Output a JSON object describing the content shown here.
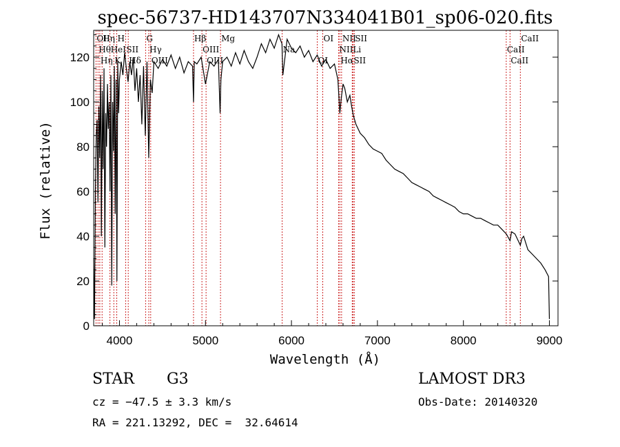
{
  "chart_data": {
    "type": "line",
    "title": "spec-56737-HD143707N334041B01_sp06-020.fits",
    "xlabel": "Wavelength (Å)",
    "ylabel": "Flux (relative)",
    "xlim": [
      3700,
      9100
    ],
    "ylim": [
      0,
      132
    ],
    "x_ticks": [
      4000,
      5000,
      6000,
      7000,
      8000,
      9000
    ],
    "y_ticks": [
      0,
      20,
      40,
      60,
      80,
      100,
      120
    ],
    "grid": false,
    "legend": "none",
    "series": [
      {
        "x": [
          3700,
          3710,
          3720,
          3730,
          3740,
          3750,
          3760,
          3770,
          3780,
          3790,
          3800,
          3810,
          3820,
          3830,
          3840,
          3850,
          3860,
          3870,
          3880,
          3890,
          3900,
          3910,
          3920,
          3930,
          3940,
          3950,
          3960,
          3970,
          3980,
          3990,
          4000,
          4020,
          4040,
          4060,
          4080,
          4100,
          4120,
          4140,
          4160,
          4180,
          4200,
          4220,
          4240,
          4260,
          4280,
          4300,
          4320,
          4340,
          4360,
          4380,
          4400,
          4450,
          4500,
          4550,
          4600,
          4650,
          4700,
          4750,
          4800,
          4850,
          4861,
          4870,
          4900,
          4950,
          5000,
          5050,
          5100,
          5150,
          5170,
          5180,
          5200,
          5250,
          5300,
          5350,
          5400,
          5450,
          5500,
          5550,
          5600,
          5650,
          5700,
          5750,
          5800,
          5850,
          5890,
          5900,
          5950,
          6000,
          6050,
          6100,
          6150,
          6200,
          6250,
          6300,
          6350,
          6400,
          6450,
          6500,
          6540,
          6563,
          6580,
          6600,
          6620,
          6650,
          6680,
          6700,
          6720,
          6750,
          6800,
          6850,
          6900,
          6950,
          7000,
          7050,
          7100,
          7150,
          7200,
          7250,
          7300,
          7350,
          7400,
          7450,
          7500,
          7550,
          7600,
          7650,
          7700,
          7750,
          7800,
          7850,
          7900,
          7950,
          8000,
          8050,
          8100,
          8150,
          8200,
          8250,
          8300,
          8350,
          8400,
          8450,
          8500,
          8542,
          8560,
          8600,
          8662,
          8680,
          8700,
          8750,
          8800,
          8850,
          8900,
          8950,
          8990,
          9000
        ],
        "y": [
          30,
          3,
          60,
          85,
          92,
          55,
          98,
          75,
          112,
          40,
          105,
          70,
          115,
          35,
          95,
          80,
          108,
          88,
          100,
          60,
          112,
          18,
          100,
          78,
          116,
          50,
          110,
          20,
          118,
          95,
          110,
          118,
          112,
          122,
          115,
          109,
          118,
          112,
          120,
          105,
          115,
          100,
          112,
          90,
          116,
          85,
          118,
          75,
          110,
          104,
          118,
          115,
          119,
          116,
          121,
          115,
          120,
          113,
          118,
          116,
          100,
          118,
          117,
          120,
          108,
          118,
          116,
          119,
          95,
          110,
          118,
          120,
          116,
          122,
          117,
          123,
          118,
          115,
          120,
          126,
          122,
          128,
          124,
          130,
          126,
          112,
          128,
          124,
          122,
          125,
          120,
          123,
          118,
          121,
          116,
          119,
          115,
          117,
          110,
          95,
          102,
          108,
          106,
          100,
          103,
          98,
          94,
          90,
          86,
          84,
          81,
          79,
          78,
          77,
          74,
          72,
          70,
          69,
          68,
          66,
          64,
          63,
          62,
          61,
          60,
          58,
          57,
          56,
          55,
          54,
          53,
          51,
          50,
          50,
          49,
          48,
          48,
          47,
          46,
          45,
          45,
          43,
          41,
          38,
          42,
          41,
          36,
          39,
          40,
          34,
          32,
          30,
          28,
          25,
          22,
          3
        ]
      }
    ],
    "annotations": {
      "line_marks": [
        {
          "wavelength": 3727,
          "label": "OII"
        },
        {
          "wavelength": 3750,
          "label": "Hθ"
        },
        {
          "wavelength": 3771,
          "label": "Hη"
        },
        {
          "wavelength": 3798,
          "label": "Hη"
        },
        {
          "wavelength": 3889,
          "label": "HeI"
        },
        {
          "wavelength": 3934,
          "label": "K"
        },
        {
          "wavelength": 3968,
          "label": "H"
        },
        {
          "wavelength": 4072,
          "label": "SII"
        },
        {
          "wavelength": 4102,
          "label": "Hδ"
        },
        {
          "wavelength": 4304,
          "label": "G"
        },
        {
          "wavelength": 4341,
          "label": "Hγ"
        },
        {
          "wavelength": 4363,
          "label": "OIII"
        },
        {
          "wavelength": 4861,
          "label": "Hβ"
        },
        {
          "wavelength": 4959,
          "label": "OIII"
        },
        {
          "wavelength": 5007,
          "label": "OIII"
        },
        {
          "wavelength": 5175,
          "label": "Mg"
        },
        {
          "wavelength": 5892,
          "label": "Na"
        },
        {
          "wavelength": 6300,
          "label": "OI"
        },
        {
          "wavelength": 6364,
          "label": "OI"
        },
        {
          "wavelength": 6548,
          "label": "NII"
        },
        {
          "wavelength": 6563,
          "label": "Hα"
        },
        {
          "wavelength": 6583,
          "label": "NII"
        },
        {
          "wavelength": 6707,
          "label": "Li"
        },
        {
          "wavelength": 6716,
          "label": "SII"
        },
        {
          "wavelength": 6731,
          "label": "SII"
        },
        {
          "wavelength": 8498,
          "label": "CaII"
        },
        {
          "wavelength": 8542,
          "label": "CaII"
        },
        {
          "wavelength": 8662,
          "label": "CaII"
        }
      ],
      "label_colors": {
        "line": "#000000",
        "marker": "#cc2222"
      }
    }
  },
  "info": {
    "object_class": "STAR",
    "subclass": "G3",
    "survey": "LAMOST DR3",
    "cz": "cz = −47.5 ± 3.3 km/s",
    "obs_date": "Obs-Date: 20140320",
    "coords": "RA = 221.13292, DEC =  32.64614"
  }
}
